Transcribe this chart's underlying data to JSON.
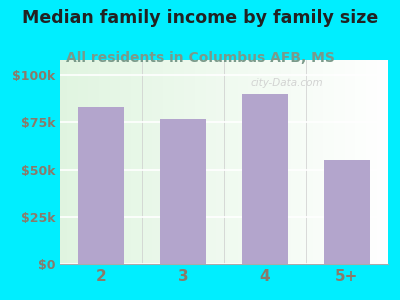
{
  "categories": [
    "2",
    "3",
    "4",
    "5+"
  ],
  "values": [
    83000,
    77000,
    90000,
    55000
  ],
  "bar_color": "#b3a5cc",
  "title": "Median family income by family size",
  "subtitle": "All residents in Columbus AFB, MS",
  "title_fontsize": 12.5,
  "subtitle_fontsize": 10,
  "title_color": "#222222",
  "subtitle_color": "#7a9a8a",
  "yticks": [
    0,
    25000,
    50000,
    75000,
    100000
  ],
  "ytick_labels": [
    "$0",
    "$25k",
    "$50k",
    "$75k",
    "$100k"
  ],
  "ylim": [
    0,
    108000
  ],
  "background_color": "#00eeff",
  "tick_label_color": "#8a7a6a",
  "bar_width": 0.55,
  "watermark": "city-Data.com"
}
